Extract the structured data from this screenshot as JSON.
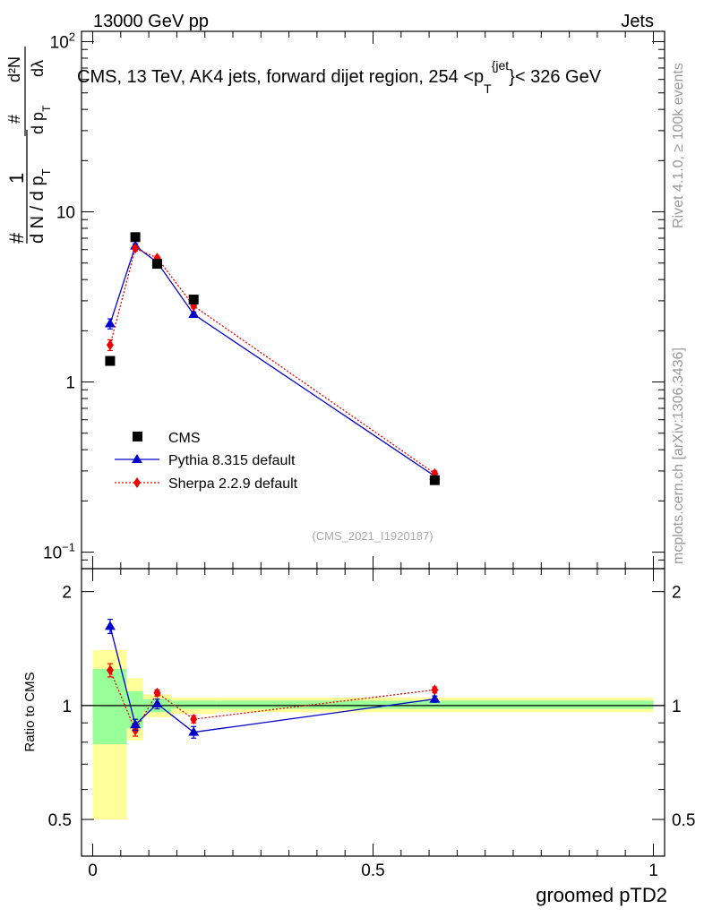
{
  "header": {
    "left": "13000 GeV pp",
    "right": "Jets"
  },
  "side_labels": {
    "rivet": "Rivet 4.1.0, ≥ 100k events",
    "mcplots": "mcplots.cern.ch [arXiv:1306.3436]"
  },
  "chart_data": [
    {
      "type": "line",
      "title_main": "CMS, 13 TeV, AK4 jets, forward dijet region, 254 <p",
      "title_sub": "T",
      "title_sup": "{jet",
      "title_tail": "}< 326 GeV",
      "ylabel": {
        "left_hash": "#",
        "big_numerator": "1",
        "den_dN": "d N / d p",
        "den_sub": "T",
        "frac2_num": "#",
        "frac2_den": "d p",
        "frac2_den_sub": "T",
        "frac3_num": "d²N",
        "frac3_den": "dλ"
      },
      "yscale": "log",
      "ylim": [
        0.08,
        115
      ],
      "xlim": [
        -0.02,
        1.02
      ],
      "yticks": [
        {
          "value": 100,
          "base": "10",
          "exp": "2"
        },
        {
          "value": 10,
          "base": "10",
          "exp": ""
        },
        {
          "value": 1,
          "base": "1",
          "exp": ""
        },
        {
          "value": 0.1,
          "base": "10",
          "exp": "−1"
        }
      ],
      "watermark": "(CMS_2021_I1920187)",
      "legend_position": "center-left",
      "series": [
        {
          "name": "CMS",
          "color": "#000000",
          "marker": "square",
          "line": "none",
          "x": [
            0.031,
            0.076,
            0.115,
            0.18,
            0.61
          ],
          "y": [
            1.33,
            7.1,
            4.95,
            3.05,
            0.265
          ],
          "yerr": [
            0,
            0,
            0,
            0,
            0
          ]
        },
        {
          "name": "Pythia 8.315 default",
          "color": "#0000cc",
          "marker": "triangle",
          "line": "solid",
          "x": [
            0.031,
            0.076,
            0.115,
            0.18,
            0.61
          ],
          "y": [
            2.2,
            6.3,
            5.05,
            2.5,
            0.28
          ],
          "yerr": [
            0.15,
            0.2,
            0.15,
            0.08,
            0.01
          ]
        },
        {
          "name": "Sherpa 2.2.9 default",
          "color": "#ee0000",
          "marker": "diamond",
          "line": "dotted",
          "x": [
            0.031,
            0.076,
            0.115,
            0.18,
            0.61
          ],
          "y": [
            1.65,
            6.1,
            5.35,
            2.8,
            0.29
          ],
          "yerr": [
            0.12,
            0.2,
            0.15,
            0.08,
            0.01
          ]
        }
      ]
    },
    {
      "type": "line",
      "ylabel": "Ratio to CMS",
      "xlabel": "groomed pTD2",
      "yscale": "log",
      "ylim": [
        0.4,
        2.3
      ],
      "xlim": [
        -0.02,
        1.02
      ],
      "yticks": [
        {
          "value": 2,
          "label": "2"
        },
        {
          "value": 1,
          "label": "1"
        },
        {
          "value": 0.5,
          "label": "0.5"
        }
      ],
      "xticks": [
        {
          "value": 0,
          "label": "0"
        },
        {
          "value": 0.5,
          "label": "0.5"
        },
        {
          "value": 1,
          "label": "1"
        }
      ],
      "bands": [
        {
          "x0": 0.0,
          "x1": 0.06,
          "inner": [
            0.79,
            1.25
          ],
          "outer": [
            0.5,
            1.4
          ]
        },
        {
          "x0": 0.06,
          "x1": 0.09,
          "inner": [
            0.87,
            1.09
          ],
          "outer": [
            0.81,
            1.18
          ]
        },
        {
          "x0": 0.09,
          "x1": 0.14,
          "inner": [
            0.96,
            1.04
          ],
          "outer": [
            0.93,
            1.07
          ]
        },
        {
          "x0": 0.14,
          "x1": 0.22,
          "inner": [
            0.98,
            1.03
          ],
          "outer": [
            0.95,
            1.05
          ]
        },
        {
          "x0": 0.22,
          "x1": 1.0,
          "inner": [
            0.98,
            1.03
          ],
          "outer": [
            0.96,
            1.05
          ]
        }
      ],
      "band_colors": {
        "inner": "#99ff99",
        "outer": "#ffff99"
      },
      "series": [
        {
          "name": "Pythia 8.315 default",
          "color": "#0000cc",
          "marker": "triangle",
          "line": "solid",
          "x": [
            0.031,
            0.076,
            0.115,
            0.18,
            0.61
          ],
          "y": [
            1.62,
            0.89,
            1.01,
            0.85,
            1.04
          ],
          "yerr": [
            0.07,
            0.03,
            0.03,
            0.03,
            0.02
          ]
        },
        {
          "name": "Sherpa 2.2.9 default",
          "color": "#ee0000",
          "marker": "diamond",
          "line": "dotted",
          "x": [
            0.031,
            0.076,
            0.115,
            0.18,
            0.61
          ],
          "y": [
            1.24,
            0.86,
            1.08,
            0.92,
            1.1
          ],
          "yerr": [
            0.05,
            0.03,
            0.02,
            0.02,
            0.02
          ]
        }
      ]
    }
  ]
}
